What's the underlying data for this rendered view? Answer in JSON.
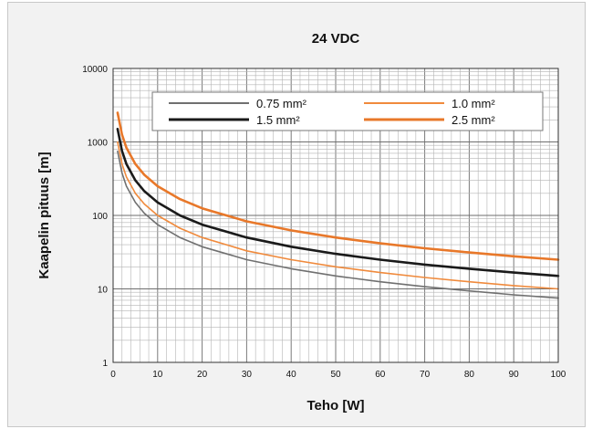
{
  "chart_data": {
    "type": "line",
    "title": "24 VDC",
    "xlabel": "Teho [W]",
    "ylabel": "Kaapelin pituus [m]",
    "xlim": [
      0,
      100
    ],
    "ylim": [
      1,
      10000
    ],
    "yscale": "log",
    "xticks": [
      "0",
      "10",
      "20",
      "30",
      "40",
      "50",
      "60",
      "70",
      "80",
      "90",
      "100"
    ],
    "yticks": [
      "1",
      "10",
      "100",
      "1000",
      "10000"
    ],
    "grid": true,
    "legend_position": "top-right",
    "x": [
      1,
      2,
      3,
      5,
      7,
      10,
      15,
      20,
      30,
      40,
      50,
      60,
      70,
      80,
      90,
      100
    ],
    "series": [
      {
        "name": "0.75 mm²",
        "color": "#707070",
        "width": 1.6,
        "values": [
          750,
          375,
          250,
          150,
          107,
          75,
          50,
          37.5,
          25,
          18.8,
          15,
          12.5,
          10.7,
          9.4,
          8.3,
          7.5
        ]
      },
      {
        "name": "1.0 mm²",
        "color": "#f08a3c",
        "width": 1.6,
        "values": [
          1000,
          500,
          333,
          200,
          143,
          100,
          67,
          50,
          33,
          25,
          20,
          16.7,
          14.3,
          12.5,
          11.1,
          10
        ]
      },
      {
        "name": "1.5 mm²",
        "color": "#1a1a1a",
        "width": 2.6,
        "values": [
          1500,
          750,
          500,
          300,
          214,
          150,
          100,
          75,
          50,
          37.5,
          30,
          25,
          21.4,
          18.8,
          16.7,
          15
        ]
      },
      {
        "name": "2.5 mm²",
        "color": "#e8782a",
        "width": 2.6,
        "values": [
          2500,
          1250,
          833,
          500,
          357,
          250,
          167,
          125,
          83,
          62.5,
          50,
          41.7,
          35.7,
          31.3,
          27.8,
          25
        ]
      }
    ]
  }
}
